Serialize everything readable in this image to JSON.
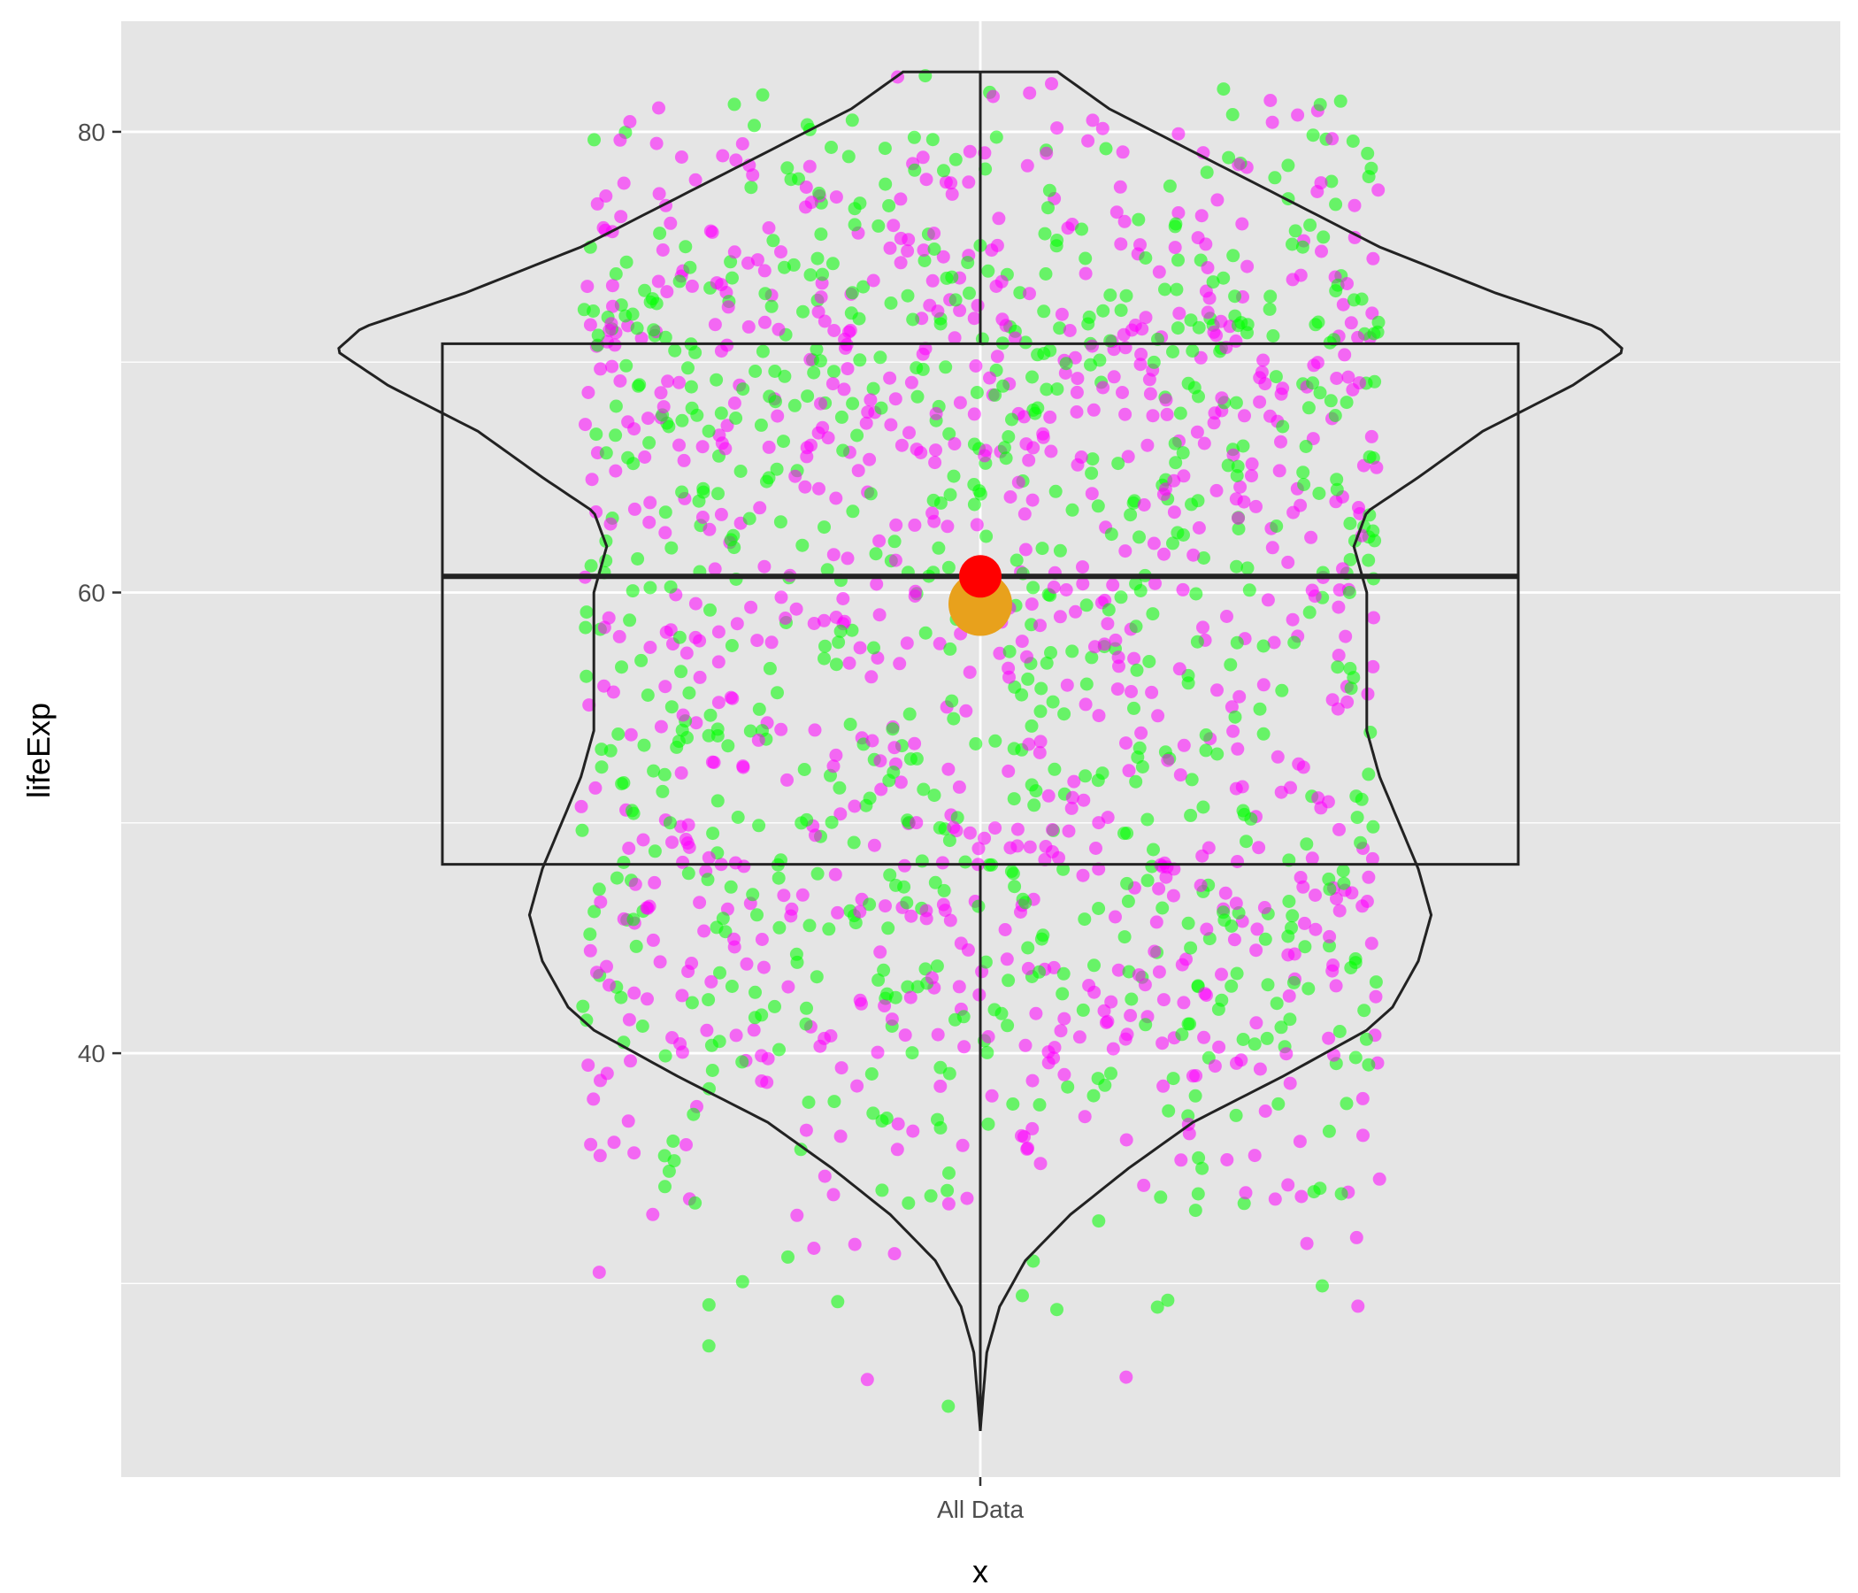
{
  "chart_data": {
    "type": "violin",
    "categories": [
      "All Data"
    ],
    "xlabel": "x",
    "ylabel": "lifeExp",
    "ylim": [
      21.6,
      84.8
    ],
    "y_ticks": [
      40,
      60,
      80
    ],
    "y_tick_labels": [
      "40",
      "60",
      "80"
    ],
    "grid": true,
    "background": "#e5e5e5",
    "grid_color": "#ffffff",
    "points": {
      "count": 1704,
      "group_colors": [
        "#ff00ff",
        "#00ff00"
      ],
      "opacity": 0.55
    },
    "boxplot": {
      "category": "All Data",
      "q1": 48.2,
      "median": 60.7,
      "q3": 70.8,
      "whisker_low": 23.6,
      "whisker_high": 82.6
    },
    "violin": {
      "min": 23.6,
      "max": 82.6,
      "profile": [
        [
          23.6,
          0.0
        ],
        [
          25,
          0.004
        ],
        [
          27,
          0.01
        ],
        [
          29,
          0.03
        ],
        [
          31,
          0.07
        ],
        [
          33,
          0.14
        ],
        [
          35,
          0.23
        ],
        [
          37,
          0.33
        ],
        [
          39,
          0.47
        ],
        [
          41,
          0.6
        ],
        [
          42,
          0.64
        ],
        [
          43,
          0.66
        ],
        [
          44,
          0.68
        ],
        [
          46,
          0.7
        ],
        [
          48,
          0.68
        ],
        [
          50,
          0.65
        ],
        [
          52,
          0.62
        ],
        [
          54,
          0.6
        ],
        [
          56,
          0.6
        ],
        [
          58,
          0.6
        ],
        [
          60,
          0.6
        ],
        [
          62,
          0.58
        ],
        [
          63.5,
          0.6
        ],
        [
          65,
          0.68
        ],
        [
          67,
          0.78
        ],
        [
          69,
          0.92
        ],
        [
          70.5,
          1.0
        ],
        [
          71.5,
          0.96
        ],
        [
          73,
          0.8
        ],
        [
          75,
          0.62
        ],
        [
          77,
          0.48
        ],
        [
          79,
          0.34
        ],
        [
          81,
          0.2
        ],
        [
          82.6,
          0.12
        ]
      ]
    },
    "mean_marker": {
      "value": 59.5,
      "color": "#e8a11c"
    },
    "median_marker": {
      "value": 60.7,
      "color": "#ff0000"
    }
  }
}
